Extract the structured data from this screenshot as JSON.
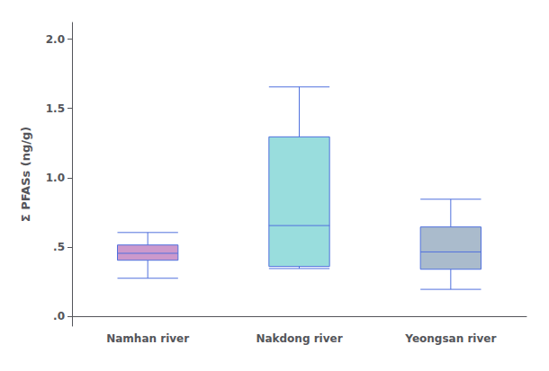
{
  "chart_data": {
    "type": "boxplot",
    "categories": [
      "Namhan river",
      "Nakdong river",
      "Yeongsan river"
    ],
    "values": [
      [
        0.275,
        0.405,
        0.455,
        0.515,
        0.605
      ],
      [
        0.345,
        0.36,
        0.655,
        1.295,
        1.655
      ],
      [
        0.195,
        0.34,
        0.465,
        0.645,
        0.845
      ]
    ],
    "colors": [
      "#CC99CC",
      "#99DDDD",
      "#AABBCC"
    ],
    "ylabel": "Σ PFASs (ng/g)",
    "ylim": [
      -0.07,
      2.12
    ],
    "yticks": [
      {
        "value": 0.0,
        "label": ".0"
      },
      {
        "value": 0.5,
        "label": ".5"
      },
      {
        "value": 1.0,
        "label": "1.0"
      },
      1.5,
      {
        "value": 2.0,
        "label": "2.0"
      }
    ],
    "grid": false
  }
}
